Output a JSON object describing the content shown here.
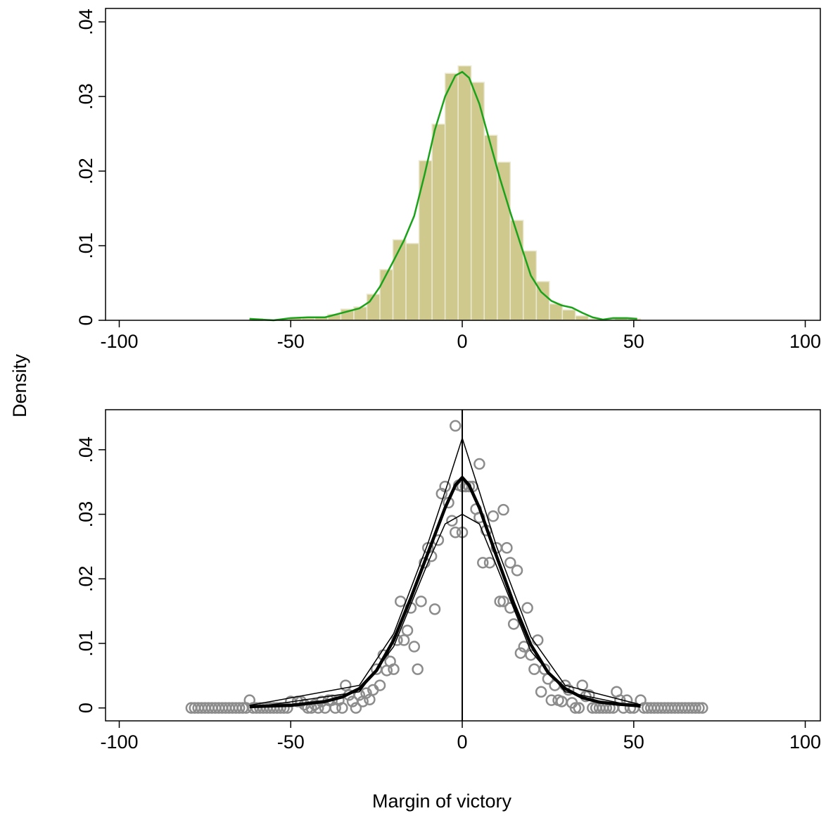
{
  "chart_data": [
    {
      "type": "histogram",
      "ylabel": "Density",
      "bins": [
        -62,
        -58.2,
        -54.4,
        -50.6,
        -46.8,
        -43,
        -39.2,
        -35.4,
        -31.6,
        -27.8,
        -24,
        -20.2,
        -16.4,
        -12.6,
        -8.8,
        -5,
        -1.2,
        2.6,
        6.4,
        10.2,
        14,
        17.8,
        21.6,
        25.4,
        29.2,
        33,
        36.8,
        40.6,
        44.4,
        48.2,
        52
      ],
      "values": [
        0.0002,
        0,
        0.0001,
        0.0003,
        0.0003,
        0.0004,
        0.0008,
        0.0015,
        0.0018,
        0.0035,
        0.0068,
        0.0108,
        0.0103,
        0.0214,
        0.0263,
        0.0331,
        0.0341,
        0.0319,
        0.0248,
        0.0212,
        0.0134,
        0.0093,
        0.0052,
        0.0022,
        0.0014,
        0.0006,
        0.0002,
        0.0001,
        0.0003,
        0.0002
      ],
      "color": "#cfc98e",
      "kde": {
        "color": "#1aa31a",
        "x": [
          -62,
          -55,
          -50,
          -45,
          -40,
          -35,
          -30,
          -27,
          -24,
          -20,
          -17,
          -14,
          -11,
          -8,
          -5,
          -2,
          0,
          2,
          5,
          8,
          11,
          14,
          17,
          20,
          23,
          26,
          29,
          32,
          35,
          38,
          41,
          44,
          48,
          51
        ],
        "values": [
          0.0002,
          0,
          0.0003,
          0.0004,
          0.0004,
          0.001,
          0.0016,
          0.0025,
          0.0045,
          0.008,
          0.0107,
          0.014,
          0.0195,
          0.0255,
          0.03,
          0.0328,
          0.0333,
          0.0325,
          0.029,
          0.024,
          0.019,
          0.0145,
          0.0102,
          0.006,
          0.0038,
          0.0026,
          0.002,
          0.0017,
          0.001,
          0.0004,
          0.0001,
          0.0003,
          0.0003,
          0.0002
        ]
      },
      "xlim": [
        -104,
        104.4
      ],
      "xticks": [
        -100,
        -50,
        0,
        50,
        100
      ],
      "ylim": [
        0,
        0.0418
      ],
      "yticks": [
        0,
        {
          "value": 0.01,
          "label": ".01"
        },
        {
          "value": 0.02,
          "label": ".02"
        },
        {
          "value": 0.03,
          "label": ".03"
        },
        {
          "value": 0.04,
          "label": ".04"
        }
      ]
    },
    {
      "type": "scatter",
      "xlabel": "Margin of victory",
      "color": "#8c8c8c",
      "x": [
        -79,
        -78,
        -77,
        -76,
        -75,
        -74,
        -73,
        -72,
        -71,
        -70,
        -69,
        -68,
        -67,
        -66,
        -65,
        -64,
        -63,
        -62,
        -61,
        -60,
        -59,
        -58,
        -57,
        -56,
        -55,
        -54,
        -53,
        -52,
        -51,
        -50,
        -48,
        -47,
        -46,
        -45,
        -44,
        -43,
        -42,
        -41,
        -40,
        -39,
        -38,
        -37,
        -36,
        -35,
        -34,
        -33,
        -32,
        -31,
        -30,
        -29,
        -28,
        -27,
        -26,
        -25,
        -24,
        -23,
        -22,
        -21,
        -20,
        -19,
        -18,
        -17,
        -16,
        -15,
        -14,
        -13,
        -12,
        -11,
        -10,
        -9,
        -8,
        -7,
        -6,
        -5,
        -4,
        -3,
        -2,
        -2,
        -1,
        0,
        0,
        1,
        2,
        3,
        4,
        5,
        5,
        6,
        7,
        8,
        9,
        10,
        11,
        12,
        12,
        13,
        14,
        14,
        15,
        16,
        17,
        18,
        19,
        20,
        21,
        22,
        23,
        24,
        25,
        26,
        27,
        28,
        29,
        30,
        31,
        32,
        33,
        34,
        35,
        36,
        37,
        38,
        39,
        40,
        41,
        42,
        43,
        44,
        45,
        46,
        47,
        48,
        49,
        50,
        52,
        53,
        54,
        55,
        56,
        57,
        58,
        59,
        60,
        61,
        62,
        63,
        64,
        65,
        66,
        67,
        68,
        69,
        70
      ],
      "values": [
        0,
        0,
        0,
        0,
        0,
        0,
        0,
        0,
        0,
        0,
        0,
        0,
        0,
        0,
        0,
        0,
        0,
        0.0012,
        0,
        0,
        0,
        0,
        0,
        0,
        0,
        0,
        0,
        0,
        0,
        0.001,
        0.001,
        0.001,
        0.0005,
        0,
        0,
        0.0005,
        0,
        0.001,
        0,
        0.0012,
        0.0012,
        0,
        0.0012,
        0,
        0.0035,
        0.002,
        0.001,
        0,
        0.002,
        0.001,
        0.0023,
        0.0013,
        0.0028,
        0.006,
        0.0035,
        0.0082,
        0.0058,
        0.0072,
        0.006,
        0.0105,
        0.0165,
        0.0105,
        0.012,
        0.0155,
        0.0095,
        0.006,
        0.0165,
        0.0225,
        0.0248,
        0.0235,
        0.0153,
        0.026,
        0.0332,
        0.0343,
        0.0318,
        0.029,
        0.0272,
        0.0437,
        0.0345,
        0.0272,
        0.0343,
        0.0343,
        0.0343,
        0.0343,
        0.0308,
        0.0295,
        0.0378,
        0.0225,
        0.0275,
        0.0225,
        0.0297,
        0.0248,
        0.0165,
        0.0165,
        0.0307,
        0.0248,
        0.0155,
        0.0225,
        0.013,
        0.0213,
        0.0085,
        0.0095,
        0.0155,
        0.0082,
        0.006,
        0.0105,
        0.0025,
        0.006,
        0.0045,
        0.0012,
        0.0035,
        0.0012,
        0.001,
        0.0035,
        0.0028,
        0.0008,
        0,
        0,
        0.0035,
        0.0018,
        0.002,
        0,
        0,
        0,
        0,
        0,
        0,
        0,
        0.0025,
        0.0012,
        0,
        0.0012,
        0,
        0,
        0.0012,
        0,
        0,
        0,
        0,
        0,
        0,
        0,
        0,
        0,
        0,
        0,
        0,
        0,
        0,
        0,
        0,
        0,
        0
      ],
      "lines": [
        {
          "color": "#000000",
          "width": 4.5,
          "x": [
            -62,
            -50,
            -40,
            -35,
            -30,
            -25,
            -20,
            -15,
            -10,
            -5,
            -2,
            0,
            2,
            5,
            10,
            15,
            20,
            25,
            30,
            35,
            40,
            45,
            52
          ],
          "values": [
            0.0002,
            0.0004,
            0.001,
            0.0017,
            0.003,
            0.0058,
            0.0105,
            0.017,
            0.024,
            0.031,
            0.0345,
            0.0357,
            0.0345,
            0.031,
            0.0235,
            0.0162,
            0.0098,
            0.0055,
            0.003,
            0.0016,
            0.0009,
            0.0006,
            0.0003
          ]
        },
        {
          "color": "#000000",
          "width": 1.5,
          "x": [
            -62,
            -30,
            -20,
            -10,
            -5,
            0,
            5,
            10,
            20,
            30,
            52
          ],
          "values": [
            0.0004,
            0.0035,
            0.0115,
            0.0255,
            0.0335,
            0.0418,
            0.0335,
            0.025,
            0.011,
            0.0035,
            0.0005
          ]
        },
        {
          "color": "#000000",
          "width": 1.5,
          "x": [
            -62,
            -30,
            -20,
            -10,
            -5,
            0,
            5,
            10,
            20,
            30,
            52
          ],
          "values": [
            0,
            0.0025,
            0.0095,
            0.0225,
            0.0285,
            0.03,
            0.0285,
            0.022,
            0.0088,
            0.0025,
            0.0001
          ]
        }
      ],
      "xline": 0,
      "xlim": [
        -104,
        104.4
      ],
      "xticks": [
        -100,
        -50,
        0,
        50,
        100
      ],
      "ylim": [
        -0.002,
        0.0462
      ],
      "yticks": [
        0,
        {
          "value": 0.01,
          "label": ".01"
        },
        {
          "value": 0.02,
          "label": ".02"
        },
        {
          "value": 0.03,
          "label": ".03"
        },
        {
          "value": 0.04,
          "label": ".04"
        }
      ]
    }
  ]
}
